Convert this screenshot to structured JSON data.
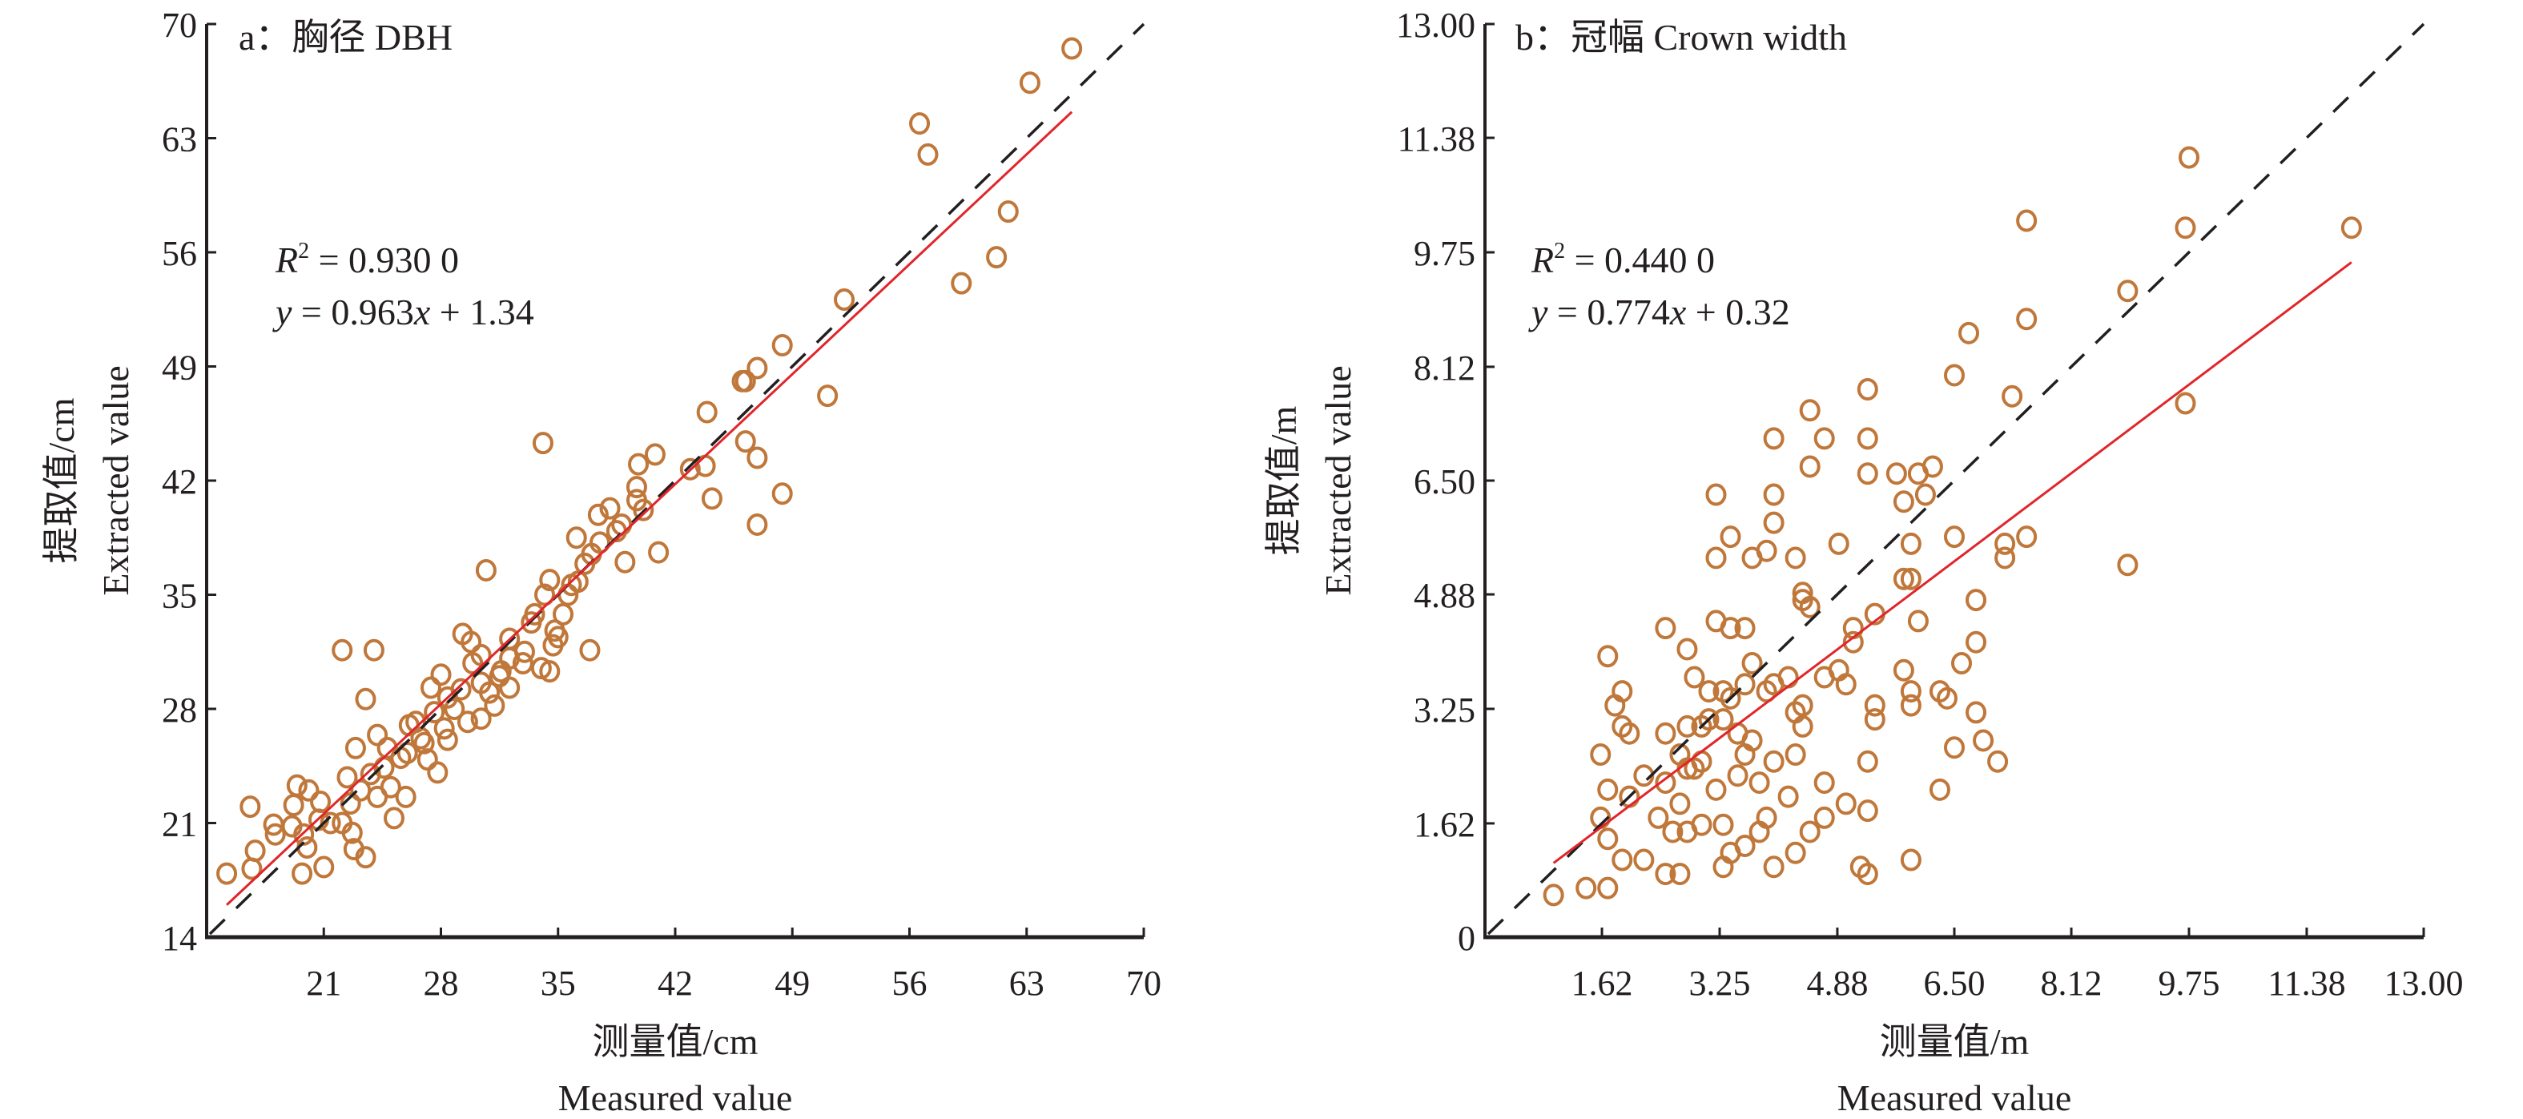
{
  "colors": {
    "point": "#c0773a",
    "fit": "#e0262b",
    "identity": "#231f20",
    "axis": "#231f20"
  },
  "chart_data": [
    {
      "type": "scatter",
      "title": "a：胸径 DBH",
      "xlabel": "测量值/cm",
      "xlabel2": "Measured value",
      "ylabel": "提取值/cm",
      "ylabel2": "Extracted value",
      "xlim": [
        14,
        70
      ],
      "ylim": [
        14,
        70
      ],
      "xticks": [
        21,
        28,
        35,
        42,
        49,
        56,
        63,
        70
      ],
      "xtick_labels": [
        "21",
        "28",
        "35",
        "42",
        "49",
        "56",
        "63",
        "70"
      ],
      "yticks": [
        14,
        21,
        28,
        35,
        42,
        49,
        56,
        63,
        70
      ],
      "ytick_labels": [
        "14",
        "21",
        "28",
        "35",
        "42",
        "49",
        "56",
        "63",
        "70"
      ],
      "grid": false,
      "annotation": {
        "r2_label": "R",
        "r2_sup": "2",
        "r2_value": " = 0.930 0",
        "eq_y": "y",
        "eq_mid": " = 0.963",
        "eq_x": "x",
        "eq_end": " + 1.34"
      },
      "fit": {
        "slope": 0.963,
        "intercept": 1.34,
        "x_range": [
          15.2,
          65.7
        ]
      },
      "identity_line": {
        "x_range": [
          14,
          70
        ]
      },
      "points": [
        [
          65.7,
          68.5
        ],
        [
          63.2,
          66.4
        ],
        [
          56.6,
          63.9
        ],
        [
          57.1,
          62.0
        ],
        [
          61.9,
          58.5
        ],
        [
          61.2,
          55.7
        ],
        [
          59.1,
          54.1
        ],
        [
          52.1,
          53.1
        ],
        [
          48.4,
          50.3
        ],
        [
          51.1,
          47.2
        ],
        [
          46.9,
          48.9
        ],
        [
          46.2,
          48.1
        ],
        [
          46.0,
          48.1
        ],
        [
          43.9,
          46.2
        ],
        [
          46.2,
          44.4
        ],
        [
          46.9,
          43.4
        ],
        [
          40.8,
          43.6
        ],
        [
          39.8,
          43.0
        ],
        [
          42.9,
          42.7
        ],
        [
          43.8,
          42.9
        ],
        [
          34.1,
          44.3
        ],
        [
          48.4,
          41.2
        ],
        [
          44.2,
          40.9
        ],
        [
          39.7,
          41.6
        ],
        [
          39.7,
          40.8
        ],
        [
          38.1,
          40.3
        ],
        [
          37.4,
          39.9
        ],
        [
          38.8,
          39.3
        ],
        [
          46.9,
          39.3
        ],
        [
          36.1,
          38.5
        ],
        [
          37.5,
          38.2
        ],
        [
          41.0,
          37.6
        ],
        [
          39.0,
          37.0
        ],
        [
          30.7,
          36.5
        ],
        [
          34.5,
          35.9
        ],
        [
          36.2,
          35.8
        ],
        [
          35.8,
          35.6
        ],
        [
          35.6,
          35.0
        ],
        [
          34.2,
          35.0
        ],
        [
          35.3,
          33.8
        ],
        [
          33.6,
          33.8
        ],
        [
          33.4,
          33.3
        ],
        [
          29.3,
          32.6
        ],
        [
          29.8,
          32.1
        ],
        [
          32.1,
          32.3
        ],
        [
          34.8,
          32.8
        ],
        [
          36.9,
          31.6
        ],
        [
          34.7,
          31.9
        ],
        [
          22.1,
          31.6
        ],
        [
          24.0,
          31.6
        ],
        [
          30.4,
          31.3
        ],
        [
          32.1,
          31.1
        ],
        [
          32.9,
          30.8
        ],
        [
          34.0,
          30.5
        ],
        [
          34.5,
          30.3
        ],
        [
          31.6,
          30.3
        ],
        [
          30.4,
          29.6
        ],
        [
          28.4,
          28.7
        ],
        [
          29.2,
          29.2
        ],
        [
          32.1,
          29.3
        ],
        [
          31.2,
          28.2
        ],
        [
          29.6,
          27.2
        ],
        [
          23.5,
          28.6
        ],
        [
          26.5,
          27.2
        ],
        [
          30.4,
          27.4
        ],
        [
          28.2,
          26.8
        ],
        [
          28.4,
          26.1
        ],
        [
          27.0,
          25.9
        ],
        [
          26.1,
          27.0
        ],
        [
          24.8,
          25.6
        ],
        [
          27.2,
          24.9
        ],
        [
          27.8,
          24.1
        ],
        [
          25.0,
          23.2
        ],
        [
          23.2,
          23.0
        ],
        [
          24.2,
          22.6
        ],
        [
          22.6,
          22.2
        ],
        [
          25.2,
          21.3
        ],
        [
          22.1,
          21.0
        ],
        [
          20.7,
          21.2
        ],
        [
          19.4,
          23.3
        ],
        [
          20.1,
          23.0
        ],
        [
          20.8,
          22.3
        ],
        [
          19.2,
          22.1
        ],
        [
          18.0,
          20.9
        ],
        [
          19.1,
          20.8
        ],
        [
          19.8,
          20.3
        ],
        [
          21.4,
          21.0
        ],
        [
          22.7,
          20.4
        ],
        [
          22.8,
          19.4
        ],
        [
          16.9,
          19.3
        ],
        [
          16.6,
          22.0
        ],
        [
          20.0,
          19.5
        ],
        [
          18.1,
          20.3
        ],
        [
          16.7,
          18.2
        ],
        [
          15.2,
          17.9
        ],
        [
          19.7,
          17.9
        ],
        [
          21.0,
          18.3
        ],
        [
          23.5,
          18.9
        ],
        [
          25.9,
          22.6
        ],
        [
          22.9,
          25.6
        ],
        [
          24.2,
          26.4
        ],
        [
          27.6,
          27.8
        ],
        [
          28.8,
          28.0
        ],
        [
          30.9,
          29.0
        ],
        [
          31.5,
          30.0
        ],
        [
          26.8,
          26.2
        ],
        [
          25.6,
          25.0
        ],
        [
          24.6,
          24.4
        ],
        [
          23.8,
          24.0
        ],
        [
          22.4,
          23.8
        ],
        [
          33.0,
          31.5
        ],
        [
          35.0,
          32.4
        ],
        [
          28.0,
          30.1
        ],
        [
          27.4,
          29.3
        ],
        [
          29.9,
          30.8
        ],
        [
          37.0,
          37.5
        ],
        [
          38.5,
          38.9
        ],
        [
          40.1,
          40.2
        ],
        [
          36.6,
          36.9
        ],
        [
          26.0,
          25.3
        ]
      ]
    },
    {
      "type": "scatter",
      "title": "b：冠幅 Crown width",
      "xlabel": "测量值/m",
      "xlabel2": "Measured value",
      "ylabel": "提取值/m",
      "ylabel2": "Extracted value",
      "xlim": [
        0,
        13
      ],
      "ylim": [
        0,
        13
      ],
      "xticks": [
        1.62,
        3.25,
        4.88,
        6.5,
        8.12,
        9.75,
        11.38,
        13.0
      ],
      "xtick_labels": [
        "1.62",
        "3.25",
        "4.88",
        "6.50",
        "8.12",
        "9.75",
        "11.38",
        "13.00"
      ],
      "yticks": [
        0,
        1.62,
        3.25,
        4.88,
        6.5,
        8.12,
        9.75,
        11.38,
        13.0
      ],
      "ytick_labels": [
        "0",
        "1.62",
        "3.25",
        "4.88",
        "6.50",
        "8.12",
        "9.75",
        "11.38",
        "13.00"
      ],
      "grid": false,
      "annotation": {
        "r2_label": "R",
        "r2_sup": "2",
        "r2_value": " = 0.440 0",
        "eq_y": "y",
        "eq_mid": " = 0.774",
        "eq_x": "x",
        "eq_end": " + 0.32"
      },
      "fit": {
        "slope": 0.774,
        "intercept": 0.32,
        "x_range": [
          0.95,
          12.0
        ]
      },
      "identity_line": {
        "x_range": [
          0,
          13
        ]
      },
      "points": [
        [
          9.75,
          11.1
        ],
        [
          12.0,
          10.1
        ],
        [
          7.5,
          10.2
        ],
        [
          9.7,
          10.1
        ],
        [
          8.9,
          9.2
        ],
        [
          7.5,
          8.8
        ],
        [
          6.7,
          8.6
        ],
        [
          7.3,
          7.7
        ],
        [
          9.7,
          7.6
        ],
        [
          6.5,
          8.0
        ],
        [
          5.3,
          7.8
        ],
        [
          4.5,
          7.5
        ],
        [
          5.3,
          7.1
        ],
        [
          4.0,
          7.1
        ],
        [
          4.7,
          7.1
        ],
        [
          5.7,
          6.6
        ],
        [
          5.3,
          6.6
        ],
        [
          4.5,
          6.7
        ],
        [
          6.2,
          6.7
        ],
        [
          6.0,
          6.6
        ],
        [
          6.1,
          6.3
        ],
        [
          5.8,
          6.2
        ],
        [
          3.2,
          6.3
        ],
        [
          4.0,
          6.3
        ],
        [
          7.5,
          5.7
        ],
        [
          7.2,
          5.6
        ],
        [
          7.2,
          5.4
        ],
        [
          6.5,
          5.7
        ],
        [
          5.9,
          5.6
        ],
        [
          4.9,
          5.6
        ],
        [
          4.3,
          5.4
        ],
        [
          3.7,
          5.4
        ],
        [
          3.9,
          5.5
        ],
        [
          3.2,
          5.4
        ],
        [
          3.4,
          5.7
        ],
        [
          8.9,
          5.3
        ],
        [
          4.0,
          5.9
        ],
        [
          6.8,
          4.8
        ],
        [
          6.0,
          4.5
        ],
        [
          5.9,
          5.1
        ],
        [
          5.8,
          5.1
        ],
        [
          5.4,
          4.6
        ],
        [
          5.1,
          4.4
        ],
        [
          5.1,
          4.2
        ],
        [
          4.4,
          4.8
        ],
        [
          4.5,
          4.7
        ],
        [
          4.4,
          4.9
        ],
        [
          3.6,
          4.4
        ],
        [
          3.2,
          4.5
        ],
        [
          3.4,
          4.4
        ],
        [
          2.5,
          4.4
        ],
        [
          2.8,
          4.1
        ],
        [
          6.8,
          4.2
        ],
        [
          6.6,
          3.9
        ],
        [
          5.8,
          3.8
        ],
        [
          5.9,
          3.5
        ],
        [
          5.9,
          3.3
        ],
        [
          6.3,
          3.5
        ],
        [
          6.4,
          3.4
        ],
        [
          6.8,
          3.2
        ],
        [
          5.4,
          3.3
        ],
        [
          5.4,
          3.1
        ],
        [
          5.0,
          3.6
        ],
        [
          4.9,
          3.8
        ],
        [
          4.7,
          3.7
        ],
        [
          4.2,
          3.7
        ],
        [
          4.0,
          3.6
        ],
        [
          3.9,
          3.5
        ],
        [
          3.7,
          3.9
        ],
        [
          3.6,
          3.6
        ],
        [
          3.3,
          3.5
        ],
        [
          3.1,
          3.5
        ],
        [
          2.9,
          3.7
        ],
        [
          3.4,
          3.4
        ],
        [
          3.3,
          3.1
        ],
        [
          3.1,
          3.1
        ],
        [
          2.8,
          3.0
        ],
        [
          3.0,
          3.0
        ],
        [
          3.5,
          2.9
        ],
        [
          3.7,
          2.8
        ],
        [
          4.3,
          3.2
        ],
        [
          4.4,
          3.3
        ],
        [
          4.4,
          3.0
        ],
        [
          3.0,
          2.5
        ],
        [
          2.9,
          2.4
        ],
        [
          2.7,
          2.6
        ],
        [
          2.5,
          2.9
        ],
        [
          2.0,
          2.9
        ],
        [
          1.9,
          3.0
        ],
        [
          1.9,
          3.5
        ],
        [
          1.7,
          4.0
        ],
        [
          1.8,
          3.3
        ],
        [
          1.6,
          2.6
        ],
        [
          1.7,
          2.1
        ],
        [
          2.2,
          2.3
        ],
        [
          2.5,
          2.2
        ],
        [
          2.7,
          1.9
        ],
        [
          2.8,
          2.4
        ],
        [
          3.2,
          2.1
        ],
        [
          3.5,
          2.3
        ],
        [
          3.6,
          2.6
        ],
        [
          3.8,
          2.2
        ],
        [
          4.0,
          2.5
        ],
        [
          4.3,
          2.6
        ],
        [
          4.7,
          2.2
        ],
        [
          5.3,
          2.5
        ],
        [
          6.9,
          2.8
        ],
        [
          7.1,
          2.5
        ],
        [
          6.5,
          2.7
        ],
        [
          6.3,
          2.1
        ],
        [
          2.4,
          1.7
        ],
        [
          2.6,
          1.5
        ],
        [
          2.8,
          1.5
        ],
        [
          3.0,
          1.6
        ],
        [
          3.3,
          1.6
        ],
        [
          3.4,
          1.2
        ],
        [
          3.6,
          1.3
        ],
        [
          3.8,
          1.5
        ],
        [
          4.3,
          1.2
        ],
        [
          4.5,
          1.5
        ],
        [
          4.7,
          1.7
        ],
        [
          5.0,
          1.9
        ],
        [
          5.3,
          1.8
        ],
        [
          5.9,
          1.1
        ],
        [
          4.0,
          1.0
        ],
        [
          2.5,
          0.9
        ],
        [
          2.7,
          0.9
        ],
        [
          3.3,
          1.0
        ],
        [
          5.2,
          1.0
        ],
        [
          5.3,
          0.9
        ],
        [
          1.7,
          1.4
        ],
        [
          1.6,
          1.7
        ],
        [
          1.9,
          1.1
        ],
        [
          1.4,
          0.7
        ],
        [
          1.7,
          0.7
        ],
        [
          0.95,
          0.6
        ],
        [
          2.2,
          1.1
        ],
        [
          3.9,
          1.7
        ],
        [
          4.2,
          2.0
        ],
        [
          2.0,
          2.0
        ]
      ]
    }
  ]
}
